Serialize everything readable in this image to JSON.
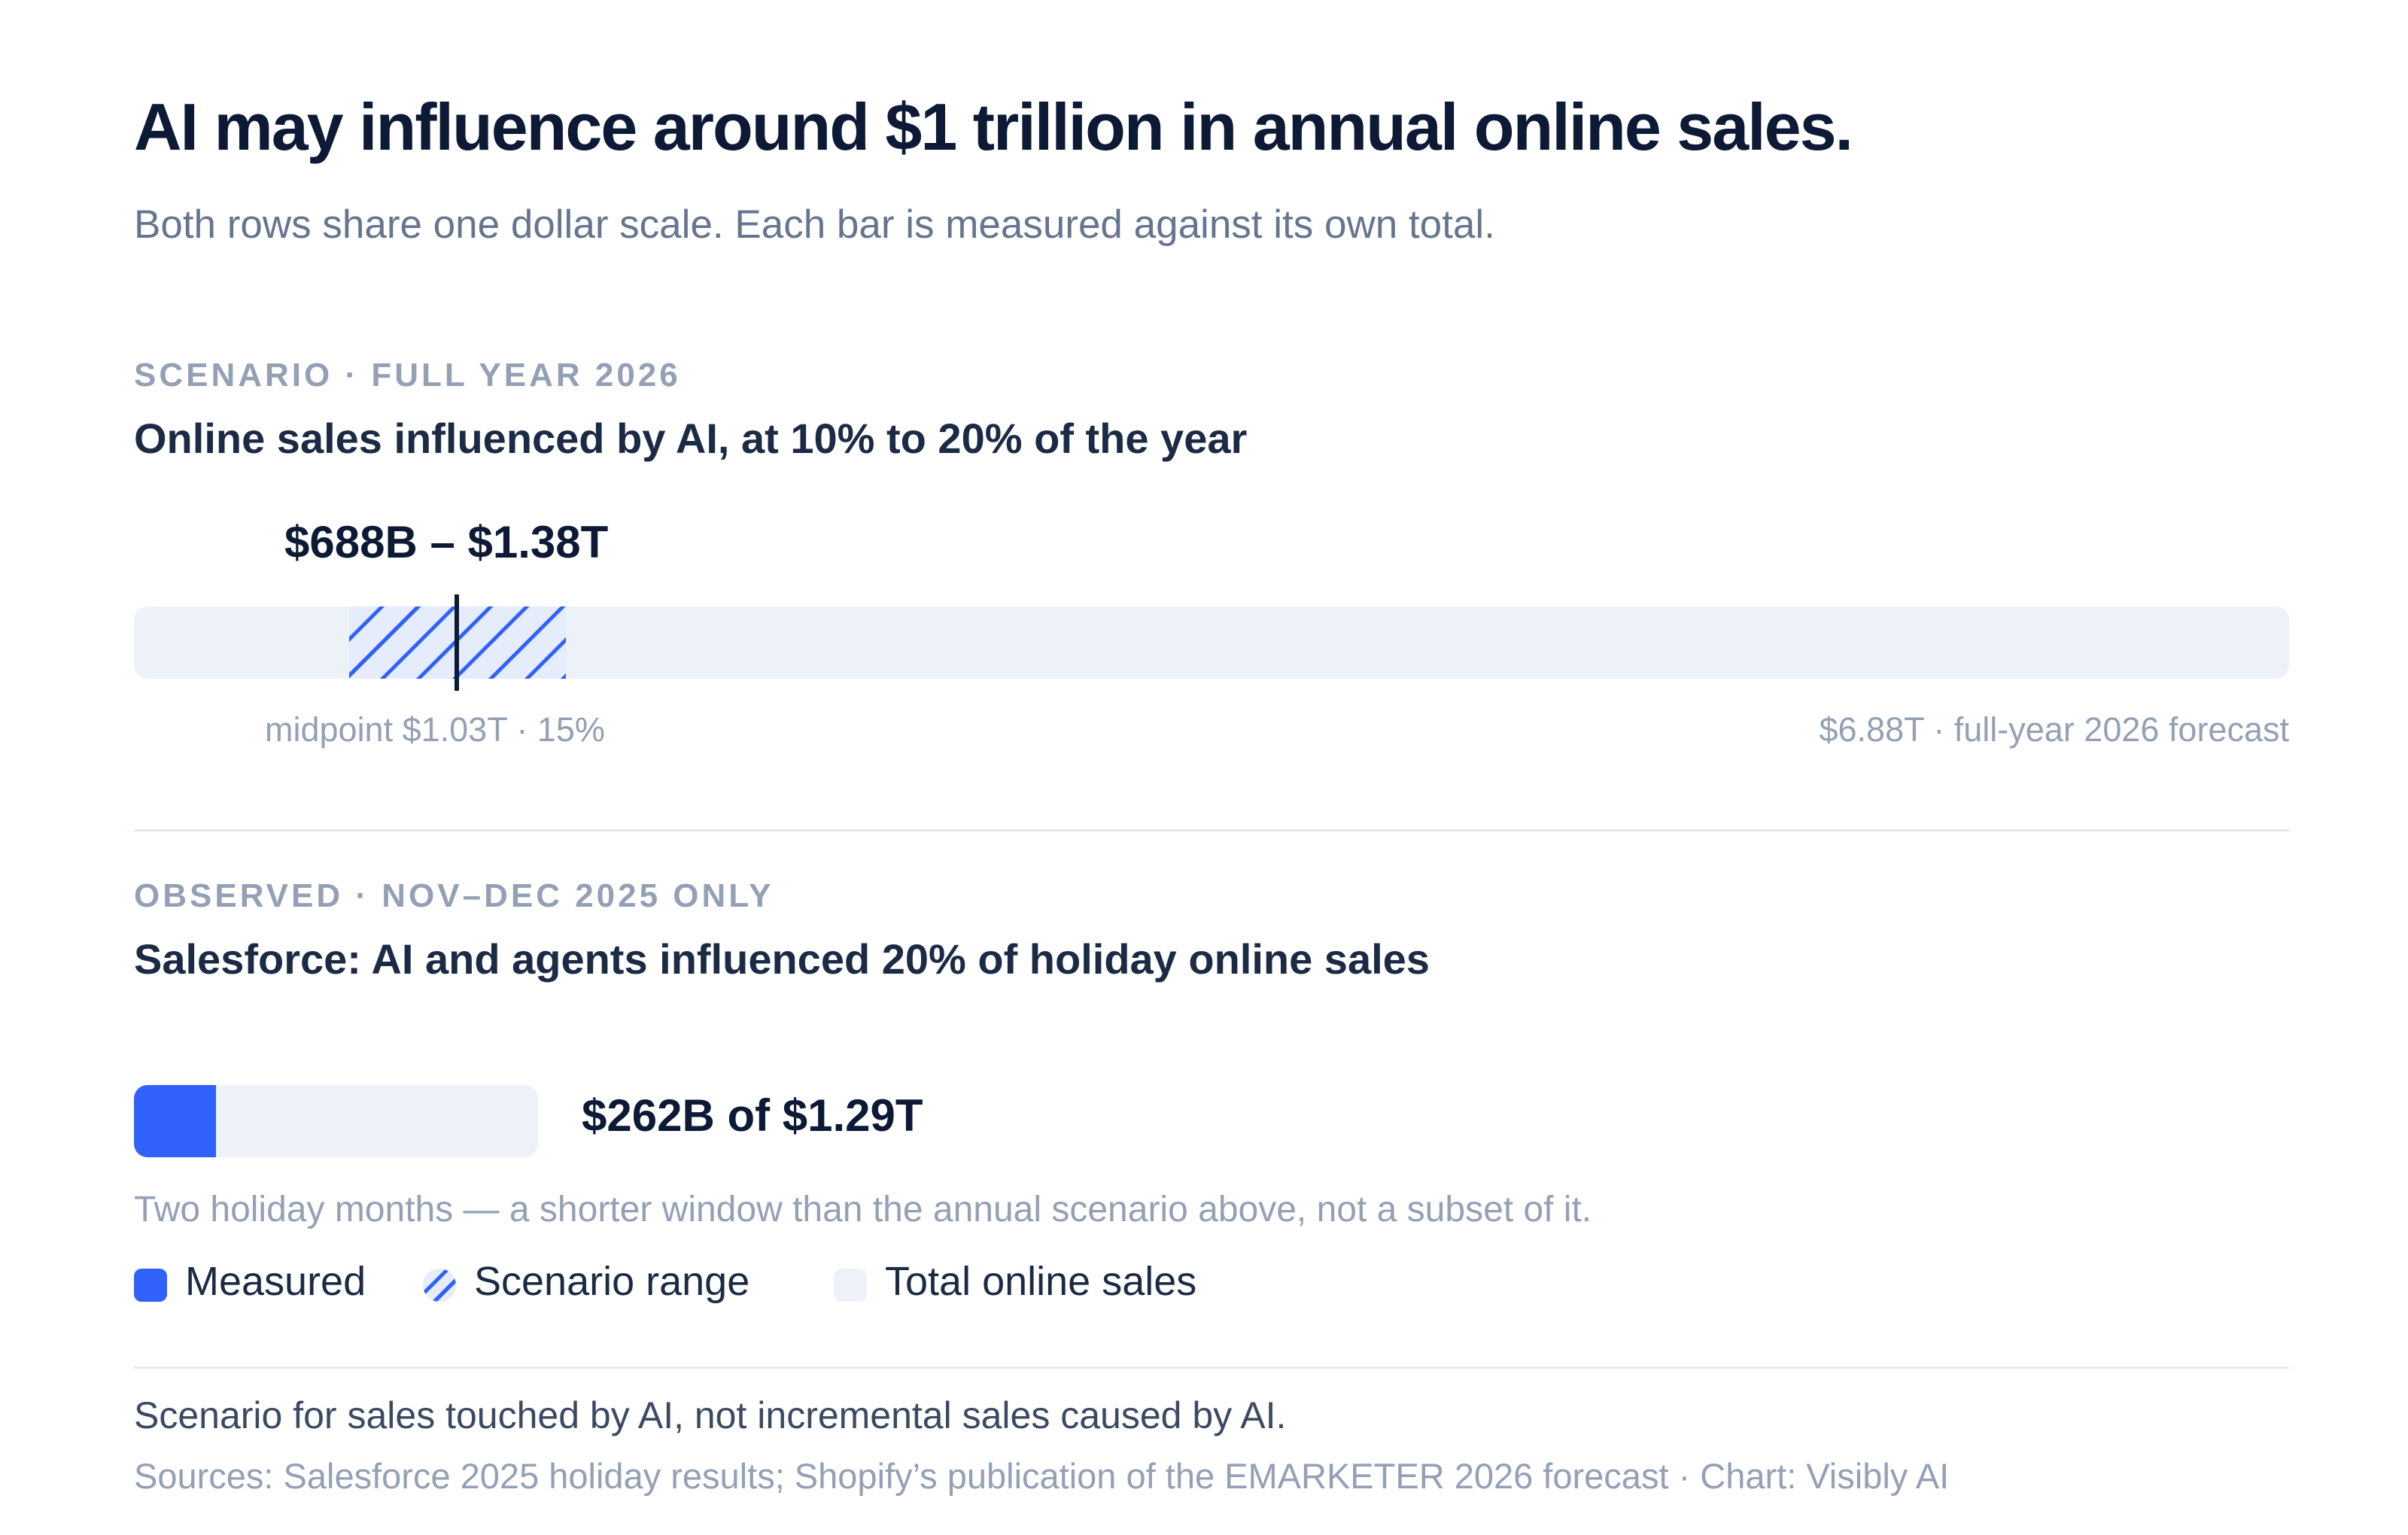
{
  "header": {
    "title": "AI may influence around $1 trillion in annual online sales.",
    "subtitle": "Both rows share one dollar scale. Each bar is measured against its own total."
  },
  "scenario": {
    "eyebrow": "SCENARIO · FULL YEAR 2026",
    "title": "Online sales influenced by AI, at 10% to 20% of the year",
    "range_label": "$688B – $1.38T",
    "midpoint_label": "midpoint $1.03T · 15%",
    "total_label": "$6.88T · full-year 2026 forecast"
  },
  "observed": {
    "eyebrow": "OBSERVED · NOV–DEC 2025 ONLY",
    "title": "Salesforce: AI and agents influenced 20% of holiday online sales",
    "value_label": "$262B of $1.29T",
    "note": "Two holiday months — a shorter window than the annual scenario above, not a subset of it."
  },
  "legend": {
    "measured": "Measured",
    "scenario_range": "Scenario range",
    "total": "Total online sales"
  },
  "footer": {
    "note": "Scenario for sales touched by AI, not incremental sales caused by AI.",
    "sources": "Sources: Salesforce 2025 holiday results; Shopify’s publication of the EMARKETER 2026 forecast · Chart: Visibly AI"
  },
  "colors": {
    "accent": "#3161fb",
    "track": "#edf2f9",
    "text_dark": "#0c1a36",
    "text_muted": "#93a0b5"
  },
  "chart_data": {
    "type": "bar",
    "unit": "USD billions",
    "scale_max": 6880,
    "rows": [
      {
        "name": "Online sales influenced by AI, at 10% to 20% of the year",
        "kind": "range",
        "total": 6880,
        "range": [
          688,
          1380
        ],
        "midpoint": 1030,
        "midpoint_share": 0.15
      },
      {
        "name": "Salesforce: AI and agents influenced 20% of holiday online sales",
        "kind": "measured",
        "total": 1290,
        "value": 262
      }
    ]
  }
}
